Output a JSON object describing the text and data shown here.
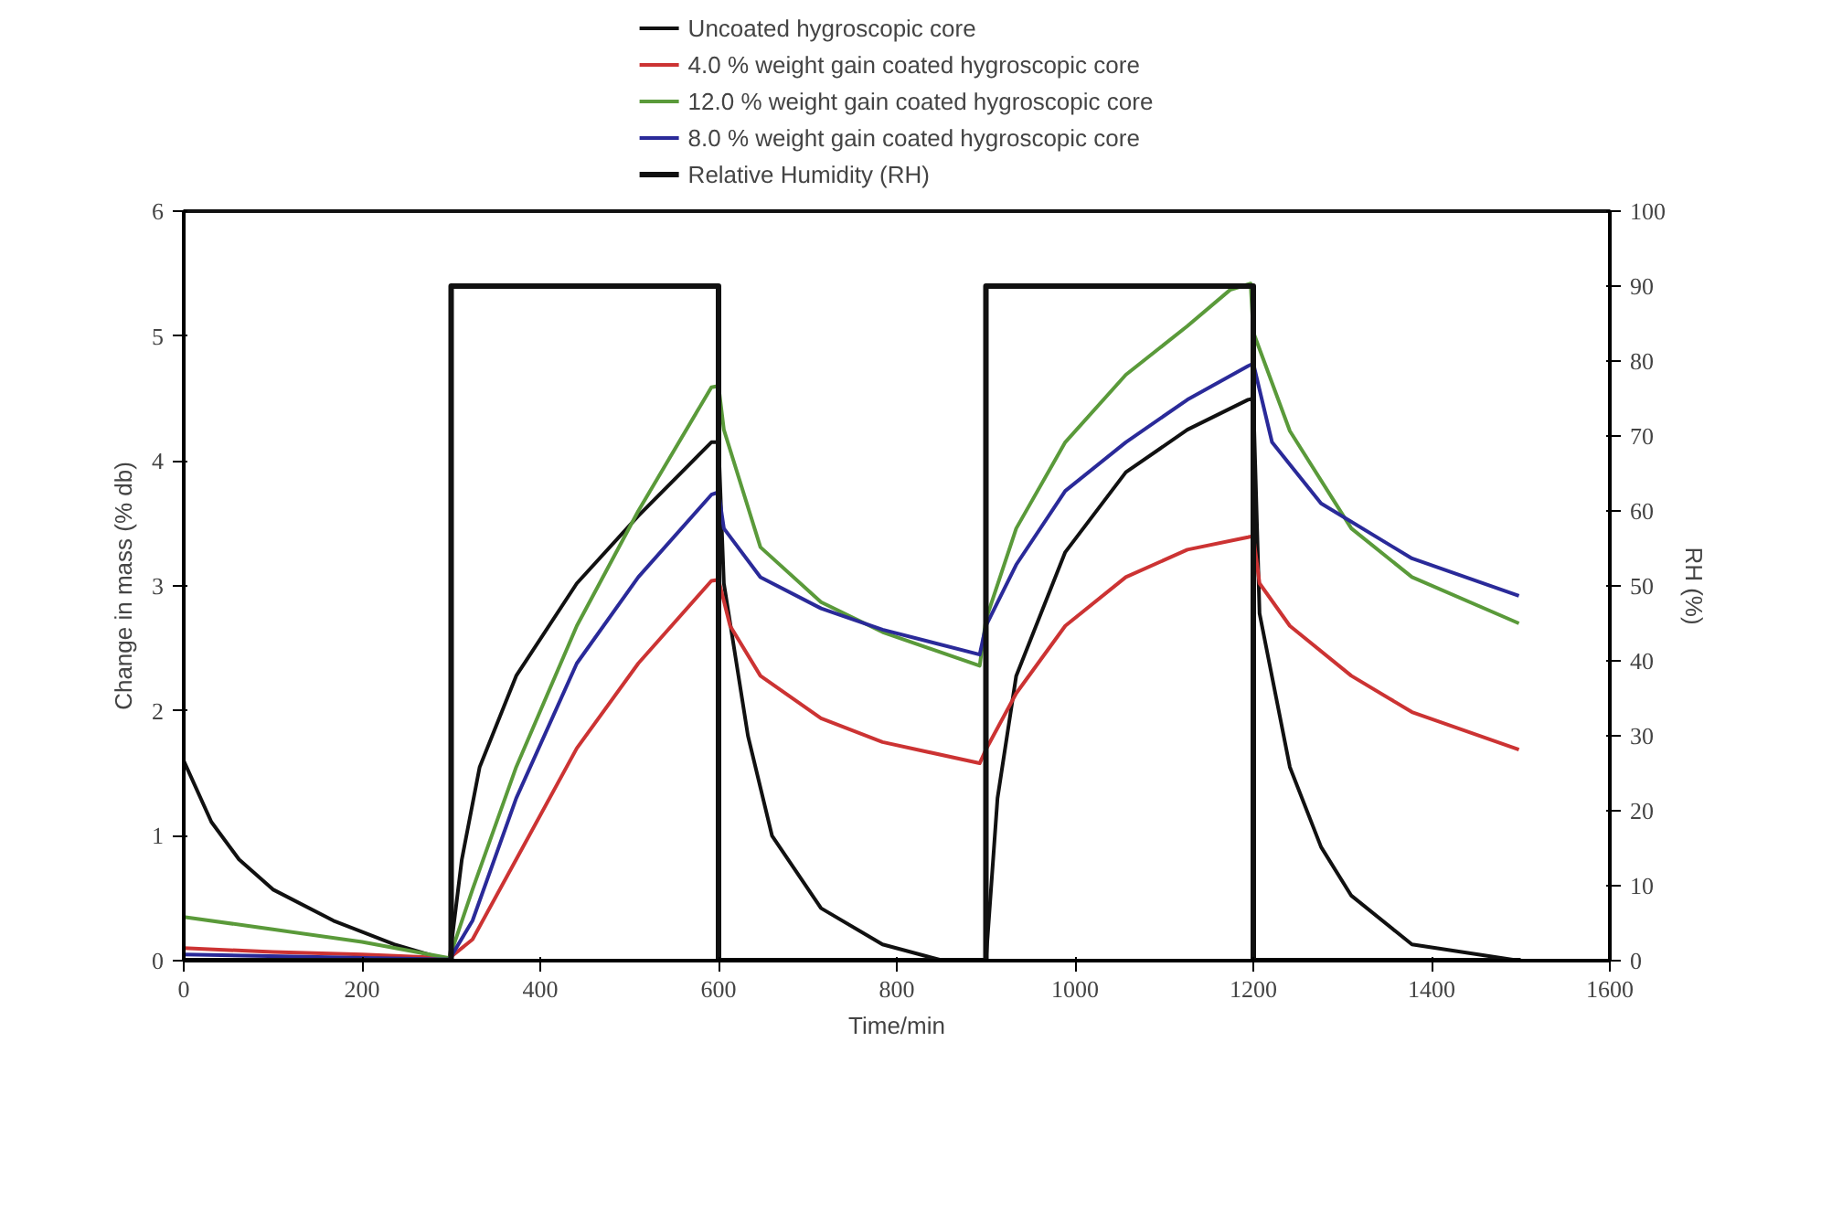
{
  "chart_data": {
    "type": "line",
    "xlabel": "Time/min",
    "ylabel": "Change in mass (% db)",
    "y2label": "RH (%)",
    "xlim": [
      0,
      1600
    ],
    "xticks": [
      0,
      200,
      400,
      600,
      800,
      1000,
      1200,
      1400,
      1600
    ],
    "ylim": [
      0,
      6
    ],
    "yticks": [
      0,
      1,
      2,
      3,
      4,
      5,
      6
    ],
    "y2lim": [
      0,
      100
    ],
    "y2ticks": [
      0,
      10,
      20,
      30,
      40,
      50,
      60,
      70,
      80,
      90,
      100
    ],
    "grid": false,
    "legend": "top",
    "marker": "none",
    "line_style": "solid",
    "series": [
      {
        "name": "Uncoated hygroscopic core",
        "color": "#111111",
        "x": [
          0,
          31,
          62,
          100,
          168,
          236,
          298,
          312,
          332,
          373,
          441,
          510,
          592,
          600,
          606,
          633,
          660,
          715,
          784,
          852,
          893,
          900,
          913,
          934,
          989,
          1057,
          1126,
          1194,
          1200,
          1207,
          1241,
          1276,
          1310,
          1378,
          1498
        ],
        "values": [
          1.6,
          1.11,
          0.81,
          0.57,
          0.32,
          0.13,
          0.0,
          0.81,
          1.55,
          2.28,
          3.02,
          3.56,
          4.15,
          4.15,
          3.02,
          1.8,
          1.0,
          0.42,
          0.13,
          0.0,
          0.0,
          0.0,
          1.3,
          2.28,
          3.27,
          3.91,
          4.25,
          4.49,
          4.5,
          2.78,
          1.55,
          0.91,
          0.52,
          0.13,
          0.0
        ]
      },
      {
        "name": "4.0 % weight gain coated hygroscopic core",
        "color": "#cc3333",
        "x": [
          0,
          100,
          200,
          298,
          324,
          373,
          441,
          510,
          592,
          600,
          613,
          647,
          715,
          784,
          893,
          900,
          934,
          989,
          1057,
          1126,
          1194,
          1200,
          1207,
          1241,
          1310,
          1378,
          1498
        ],
        "values": [
          0.1,
          0.07,
          0.05,
          0.02,
          0.17,
          0.81,
          1.7,
          2.38,
          3.04,
          3.05,
          2.68,
          2.28,
          1.94,
          1.75,
          1.58,
          1.69,
          2.14,
          2.68,
          3.07,
          3.29,
          3.39,
          3.4,
          3.02,
          2.68,
          2.28,
          1.99,
          1.69
        ]
      },
      {
        "name": "12.0 % weight gain coated hygroscopic core",
        "color": "#5a9a3a",
        "x": [
          0,
          100,
          200,
          298,
          324,
          373,
          441,
          510,
          592,
          600,
          606,
          647,
          715,
          784,
          893,
          900,
          934,
          989,
          1057,
          1126,
          1174,
          1197,
          1200,
          1241,
          1310,
          1378,
          1498
        ],
        "values": [
          0.35,
          0.25,
          0.15,
          0.02,
          0.57,
          1.55,
          2.68,
          3.6,
          4.59,
          4.6,
          4.25,
          3.31,
          2.87,
          2.63,
          2.36,
          2.73,
          3.46,
          4.15,
          4.69,
          5.08,
          5.37,
          5.42,
          5.03,
          4.24,
          3.46,
          3.07,
          2.7
        ]
      },
      {
        "name": "8.0 % weight gain coated hygroscopic core",
        "color": "#2a2a99",
        "x": [
          0,
          150,
          298,
          324,
          373,
          441,
          510,
          592,
          600,
          606,
          647,
          715,
          784,
          893,
          900,
          934,
          989,
          1057,
          1126,
          1194,
          1200,
          1221,
          1276,
          1378,
          1498
        ],
        "values": [
          0.05,
          0.03,
          0.01,
          0.32,
          1.3,
          2.38,
          3.07,
          3.73,
          3.75,
          3.46,
          3.07,
          2.82,
          2.65,
          2.45,
          2.68,
          3.17,
          3.76,
          4.15,
          4.49,
          4.76,
          4.78,
          4.15,
          3.66,
          3.22,
          2.92
        ]
      },
      {
        "name": "Relative Humidity (RH)",
        "color": "#111111",
        "axis": "y2",
        "x": [
          0,
          300,
          300,
          600,
          600,
          900,
          900,
          1200,
          1200,
          1500
        ],
        "values": [
          0,
          0,
          90,
          90,
          0,
          0,
          90,
          90,
          0,
          0
        ]
      }
    ]
  }
}
